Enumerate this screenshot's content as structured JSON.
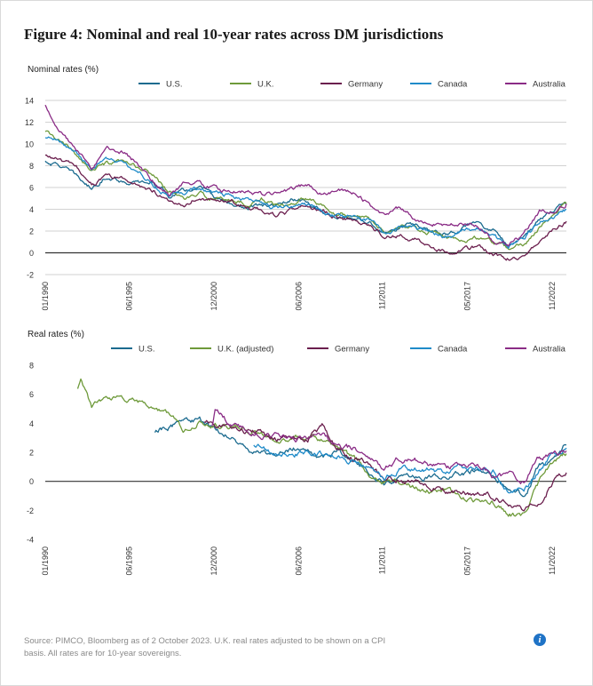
{
  "figure": {
    "title": "Figure 4: Nominal and real 10-year rates across DM jurisdictions",
    "source": "Source: PIMCO, Bloomberg as of 2 October 2023. U.K. real rates adjusted to be shown on a CPI basis. All rates are for 10-year sovereigns.",
    "info_icon": "info-icon"
  },
  "chart_data": [
    {
      "type": "line",
      "title": "Nominal rates (%)",
      "ylim": [
        -2,
        14
      ],
      "yticks": [
        -2,
        0,
        2,
        4,
        6,
        8,
        10,
        12,
        14
      ],
      "xlim": [
        1990.0,
        2023.75
      ],
      "xtick_labels": [
        "01/1990",
        "06/1995",
        "12/2000",
        "06/2006",
        "11/2011",
        "05/2017",
        "11/2022"
      ],
      "xtick_values": [
        1990.0,
        1995.42,
        2000.92,
        2006.42,
        2011.83,
        2017.33,
        2022.83
      ],
      "grid": true,
      "legend_position": "top",
      "series": [
        {
          "name": "U.S.",
          "color": "#1b6b8f",
          "x": [
            1990,
            1991,
            1992,
            1993,
            1994,
            1995,
            1996,
            1997,
            1998,
            1999,
            2000,
            2001,
            2002,
            2003,
            2004,
            2005,
            2006,
            2007,
            2008,
            2009,
            2010,
            2011,
            2012,
            2013,
            2014,
            2015,
            2016,
            2017,
            2018,
            2019,
            2020,
            2021,
            2022,
            2023,
            2023.75
          ],
          "y": [
            8.4,
            8.0,
            7.0,
            5.9,
            7.1,
            6.6,
            6.4,
            6.4,
            5.3,
            5.6,
            6.0,
            5.0,
            4.6,
            4.0,
            4.3,
            4.3,
            4.8,
            4.6,
            3.7,
            3.3,
            3.2,
            2.8,
            1.8,
            2.4,
            2.5,
            2.1,
            1.8,
            2.3,
            2.9,
            2.1,
            0.9,
            1.4,
            3.0,
            3.9,
            4.6
          ]
        },
        {
          "name": "U.K.",
          "color": "#6e9a3a",
          "x": [
            1990,
            1991,
            1992,
            1993,
            1994,
            1995,
            1996,
            1997,
            1998,
            1999,
            2000,
            2001,
            2002,
            2003,
            2004,
            2005,
            2006,
            2007,
            2008,
            2009,
            2010,
            2011,
            2012,
            2013,
            2014,
            2015,
            2016,
            2017,
            2018,
            2019,
            2020,
            2021,
            2022,
            2023,
            2023.75
          ],
          "y": [
            11.1,
            10.1,
            9.1,
            7.6,
            8.1,
            8.2,
            7.8,
            7.1,
            5.6,
            5.0,
            5.3,
            5.0,
            4.9,
            4.5,
            4.9,
            4.4,
            4.5,
            5.0,
            4.5,
            3.6,
            3.6,
            3.1,
            1.9,
            2.4,
            2.1,
            1.9,
            1.3,
            1.2,
            1.4,
            0.9,
            0.3,
            0.8,
            2.3,
            3.7,
            4.5
          ]
        },
        {
          "name": "Germany",
          "color": "#6b1f4e",
          "x": [
            1990,
            1991,
            1992,
            1993,
            1994,
            1995,
            1996,
            1997,
            1998,
            1999,
            2000,
            2001,
            2002,
            2003,
            2004,
            2005,
            2006,
            2007,
            2008,
            2009,
            2010,
            2011,
            2012,
            2013,
            2014,
            2015,
            2016,
            2017,
            2018,
            2019,
            2020,
            2021,
            2022,
            2023,
            2023.75
          ],
          "y": [
            8.9,
            8.5,
            7.8,
            6.4,
            6.9,
            6.8,
            6.2,
            5.7,
            4.6,
            4.5,
            5.3,
            4.8,
            4.8,
            4.1,
            4.0,
            3.4,
            3.8,
            4.2,
            3.9,
            3.2,
            2.8,
            2.6,
            1.5,
            1.6,
            1.2,
            0.6,
            0.1,
            0.4,
            0.5,
            -0.2,
            -0.5,
            -0.3,
            1.2,
            2.4,
            2.9
          ]
        },
        {
          "name": "Canada",
          "color": "#1f8bc9",
          "x": [
            1990,
            1991,
            1992,
            1993,
            1994,
            1995,
            1996,
            1997,
            1998,
            1999,
            2000,
            2001,
            2002,
            2003,
            2004,
            2005,
            2006,
            2007,
            2008,
            2009,
            2010,
            2011,
            2012,
            2013,
            2014,
            2015,
            2016,
            2017,
            2018,
            2019,
            2020,
            2021,
            2022,
            2023,
            2023.75
          ],
          "y": [
            10.5,
            10.2,
            9.3,
            7.8,
            8.6,
            8.1,
            7.4,
            6.3,
            5.4,
            5.6,
            5.9,
            5.5,
            5.3,
            4.8,
            4.6,
            4.1,
            4.2,
            4.3,
            3.8,
            3.3,
            3.3,
            2.9,
            1.9,
            2.6,
            2.3,
            1.6,
            1.4,
            1.9,
            2.3,
            1.6,
            0.7,
            1.4,
            2.8,
            3.4,
            4.0
          ]
        },
        {
          "name": "Australia",
          "color": "#8a2c86",
          "x": [
            1990,
            1991,
            1992,
            1993,
            1994,
            1995,
            1996,
            1997,
            1998,
            1999,
            2000,
            2001,
            2002,
            2003,
            2004,
            2005,
            2006,
            2007,
            2008,
            2009,
            2010,
            2011,
            2012,
            2013,
            2014,
            2015,
            2016,
            2017,
            2018,
            2019,
            2020,
            2021,
            2022,
            2023,
            2023.75
          ],
          "y": [
            13.5,
            11.3,
            9.6,
            7.5,
            9.6,
            9.3,
            8.2,
            6.6,
            5.4,
            6.4,
            6.3,
            5.9,
            5.6,
            5.7,
            5.4,
            5.3,
            5.8,
            6.3,
            5.3,
            5.6,
            5.4,
            4.4,
            3.2,
            4.1,
            3.2,
            2.8,
            2.4,
            2.7,
            2.4,
            1.2,
            0.9,
            1.6,
            3.8,
            3.9,
            4.5
          ]
        }
      ]
    },
    {
      "type": "line",
      "title": "Real rates (%)",
      "ylim": [
        -4,
        8
      ],
      "yticks": [
        -4,
        -2,
        0,
        2,
        4,
        6,
        8
      ],
      "xlim": [
        1990.0,
        2023.75
      ],
      "xtick_labels": [
        "01/1990",
        "06/1995",
        "12/2000",
        "06/2006",
        "11/2011",
        "05/2017",
        "11/2022"
      ],
      "xtick_values": [
        1990.0,
        1995.42,
        2000.92,
        2006.42,
        2011.83,
        2017.33,
        2022.83
      ],
      "grid": false,
      "legend_position": "top",
      "series": [
        {
          "name": "U.S.",
          "color": "#1b6b8f",
          "x": [
            1997.1,
            1998,
            1999,
            2000,
            2001,
            2002,
            2003,
            2004,
            2005,
            2006,
            2007,
            2008,
            2009,
            2010,
            2011,
            2012,
            2013,
            2014,
            2015,
            2016,
            2017,
            2018,
            2019,
            2020,
            2021,
            2022,
            2023,
            2023.75
          ],
          "y": [
            3.5,
            3.8,
            4.2,
            4.2,
            3.5,
            3.1,
            2.1,
            1.9,
            1.8,
            2.3,
            2.4,
            1.6,
            2.2,
            1.4,
            0.7,
            -0.3,
            0.4,
            0.5,
            0.4,
            0.2,
            0.5,
            0.9,
            0.3,
            -0.6,
            -1.0,
            1.0,
            1.6,
            2.5
          ]
        },
        {
          "name": "U.K. (adjusted)",
          "color": "#6e9a3a",
          "x": [
            1992.1,
            1992.3,
            1993,
            1994,
            1995,
            1996,
            1997,
            1998,
            1999,
            2000,
            2001,
            2002,
            2003,
            2004,
            2005,
            2006,
            2007,
            2008,
            2009,
            2010,
            2011,
            2012,
            2013,
            2014,
            2015,
            2016,
            2017,
            2018,
            2019,
            2020,
            2021,
            2022,
            2023,
            2023.75
          ],
          "y": [
            6.5,
            7.0,
            5.0,
            5.8,
            5.6,
            5.4,
            5.1,
            4.5,
            3.5,
            4.2,
            4.0,
            3.9,
            3.6,
            3.2,
            3.0,
            2.9,
            3.0,
            2.9,
            2.2,
            1.5,
            0.6,
            -0.1,
            -0.2,
            -0.5,
            -0.6,
            -0.8,
            -1.0,
            -1.4,
            -1.6,
            -2.2,
            -2.4,
            0.0,
            1.6,
            1.9
          ]
        },
        {
          "name": "Germany",
          "color": "#6b1f4e",
          "x": [
            2000.3,
            2001,
            2002,
            2003,
            2004,
            2005,
            2006,
            2007,
            2008,
            2009,
            2010,
            2011,
            2012,
            2013,
            2014,
            2015,
            2016,
            2017,
            2018,
            2019,
            2020,
            2021,
            2022,
            2023,
            2023.75
          ],
          "y": [
            4.2,
            3.9,
            3.7,
            3.4,
            3.3,
            3.0,
            2.9,
            3.0,
            3.8,
            2.3,
            1.6,
            1.2,
            0.1,
            0.2,
            -0.2,
            -0.4,
            -0.6,
            -0.7,
            -0.9,
            -1.1,
            -1.5,
            -2.0,
            -1.5,
            0.3,
            0.6
          ]
        },
        {
          "name": "Canada",
          "color": "#1f8bc9",
          "x": [
            2003.5,
            2004,
            2005,
            2006,
            2007,
            2008,
            2009,
            2010,
            2011,
            2012,
            2013,
            2014,
            2015,
            2016,
            2017,
            2018,
            2019,
            2020,
            2021,
            2022,
            2023,
            2023.75
          ],
          "y": [
            2.6,
            2.3,
            1.8,
            1.8,
            2.0,
            1.9,
            1.8,
            1.2,
            0.8,
            0.1,
            0.9,
            0.9,
            0.8,
            0.6,
            0.8,
            1.0,
            0.7,
            -0.5,
            -0.7,
            0.9,
            1.9,
            2.3
          ]
        },
        {
          "name": "Australia",
          "color": "#8a2c86",
          "x": [
            2000.8,
            2001,
            2002,
            2003,
            2004,
            2005,
            2006,
            2007,
            2008,
            2009,
            2010,
            2011,
            2012,
            2013,
            2014,
            2015,
            2016,
            2017,
            2018,
            2019,
            2020,
            2021,
            2022,
            2023,
            2023.75
          ],
          "y": [
            3.9,
            5.0,
            3.9,
            3.5,
            3.3,
            3.2,
            3.0,
            3.0,
            3.2,
            2.4,
            2.2,
            1.6,
            1.0,
            1.7,
            1.5,
            1.1,
            1.0,
            1.2,
            1.3,
            0.4,
            0.4,
            0.0,
            1.6,
            1.9,
            2.1
          ]
        }
      ]
    }
  ]
}
